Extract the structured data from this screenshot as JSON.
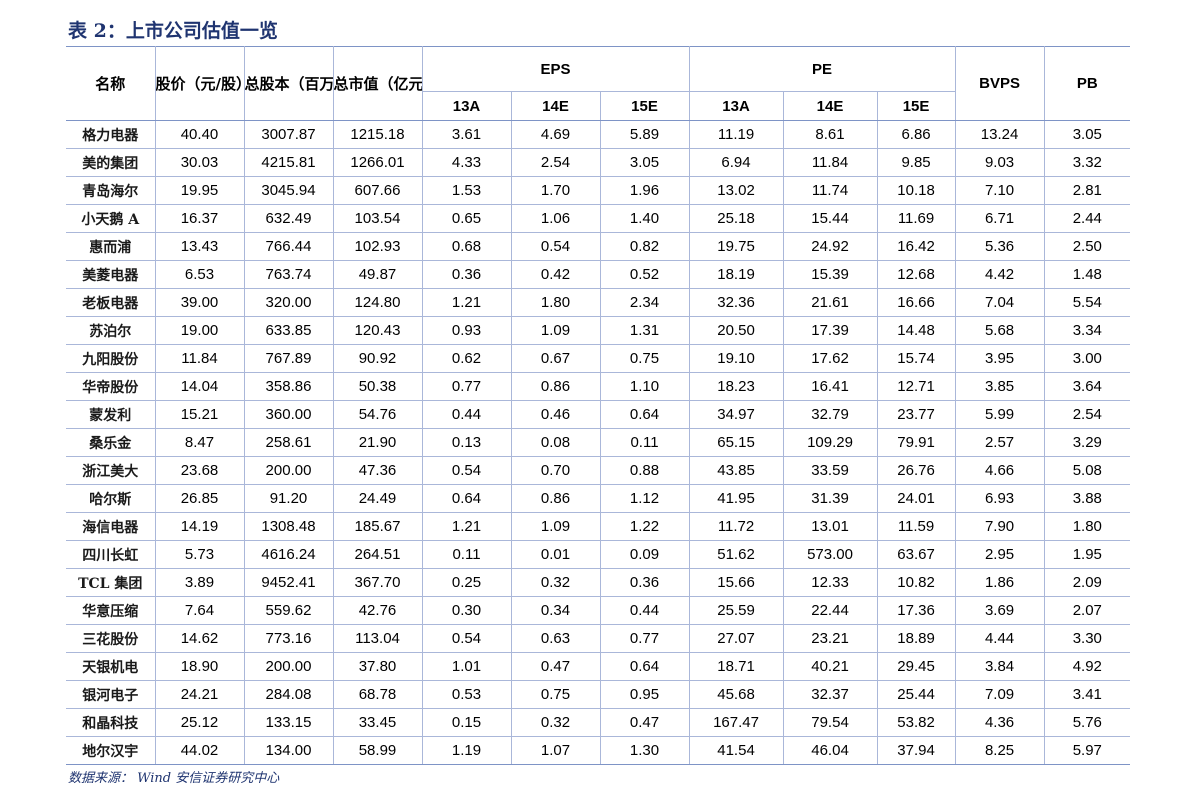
{
  "title": "表 2：上市公司估值一览",
  "headers": {
    "name": "名称",
    "price": "股价（元/股）",
    "shares": "总股本（百万股）",
    "mktcap": "总市值（亿元）",
    "eps": "EPS",
    "pe": "PE",
    "bvps": "BVPS",
    "pb": "PB",
    "years": [
      "13A",
      "14E",
      "15E"
    ]
  },
  "rows": [
    [
      "格力电器",
      "40.40",
      "3007.87",
      "1215.18",
      "3.61",
      "4.69",
      "5.89",
      "11.19",
      "8.61",
      "6.86",
      "13.24",
      "3.05"
    ],
    [
      "美的集团",
      "30.03",
      "4215.81",
      "1266.01",
      "4.33",
      "2.54",
      "3.05",
      "6.94",
      "11.84",
      "9.85",
      "9.03",
      "3.32"
    ],
    [
      "青岛海尔",
      "19.95",
      "3045.94",
      "607.66",
      "1.53",
      "1.70",
      "1.96",
      "13.02",
      "11.74",
      "10.18",
      "7.10",
      "2.81"
    ],
    [
      "小天鹅 A",
      "16.37",
      "632.49",
      "103.54",
      "0.65",
      "1.06",
      "1.40",
      "25.18",
      "15.44",
      "11.69",
      "6.71",
      "2.44"
    ],
    [
      "惠而浦",
      "13.43",
      "766.44",
      "102.93",
      "0.68",
      "0.54",
      "0.82",
      "19.75",
      "24.92",
      "16.42",
      "5.36",
      "2.50"
    ],
    [
      "美菱电器",
      "6.53",
      "763.74",
      "49.87",
      "0.36",
      "0.42",
      "0.52",
      "18.19",
      "15.39",
      "12.68",
      "4.42",
      "1.48"
    ],
    [
      "老板电器",
      "39.00",
      "320.00",
      "124.80",
      "1.21",
      "1.80",
      "2.34",
      "32.36",
      "21.61",
      "16.66",
      "7.04",
      "5.54"
    ],
    [
      "苏泊尔",
      "19.00",
      "633.85",
      "120.43",
      "0.93",
      "1.09",
      "1.31",
      "20.50",
      "17.39",
      "14.48",
      "5.68",
      "3.34"
    ],
    [
      "九阳股份",
      "11.84",
      "767.89",
      "90.92",
      "0.62",
      "0.67",
      "0.75",
      "19.10",
      "17.62",
      "15.74",
      "3.95",
      "3.00"
    ],
    [
      "华帝股份",
      "14.04",
      "358.86",
      "50.38",
      "0.77",
      "0.86",
      "1.10",
      "18.23",
      "16.41",
      "12.71",
      "3.85",
      "3.64"
    ],
    [
      "蒙发利",
      "15.21",
      "360.00",
      "54.76",
      "0.44",
      "0.46",
      "0.64",
      "34.97",
      "32.79",
      "23.77",
      "5.99",
      "2.54"
    ],
    [
      "桑乐金",
      "8.47",
      "258.61",
      "21.90",
      "0.13",
      "0.08",
      "0.11",
      "65.15",
      "109.29",
      "79.91",
      "2.57",
      "3.29"
    ],
    [
      "浙江美大",
      "23.68",
      "200.00",
      "47.36",
      "0.54",
      "0.70",
      "0.88",
      "43.85",
      "33.59",
      "26.76",
      "4.66",
      "5.08"
    ],
    [
      "哈尔斯",
      "26.85",
      "91.20",
      "24.49",
      "0.64",
      "0.86",
      "1.12",
      "41.95",
      "31.39",
      "24.01",
      "6.93",
      "3.88"
    ],
    [
      "海信电器",
      "14.19",
      "1308.48",
      "185.67",
      "1.21",
      "1.09",
      "1.22",
      "11.72",
      "13.01",
      "11.59",
      "7.90",
      "1.80"
    ],
    [
      "四川长虹",
      "5.73",
      "4616.24",
      "264.51",
      "0.11",
      "0.01",
      "0.09",
      "51.62",
      "573.00",
      "63.67",
      "2.95",
      "1.95"
    ],
    [
      "TCL 集团",
      "3.89",
      "9452.41",
      "367.70",
      "0.25",
      "0.32",
      "0.36",
      "15.66",
      "12.33",
      "10.82",
      "1.86",
      "2.09"
    ],
    [
      "华意压缩",
      "7.64",
      "559.62",
      "42.76",
      "0.30",
      "0.34",
      "0.44",
      "25.59",
      "22.44",
      "17.36",
      "3.69",
      "2.07"
    ],
    [
      "三花股份",
      "14.62",
      "773.16",
      "113.04",
      "0.54",
      "0.63",
      "0.77",
      "27.07",
      "23.21",
      "18.89",
      "4.44",
      "3.30"
    ],
    [
      "天银机电",
      "18.90",
      "200.00",
      "37.80",
      "1.01",
      "0.47",
      "0.64",
      "18.71",
      "40.21",
      "29.45",
      "3.84",
      "4.92"
    ],
    [
      "银河电子",
      "24.21",
      "284.08",
      "68.78",
      "0.53",
      "0.75",
      "0.95",
      "45.68",
      "32.37",
      "25.44",
      "7.09",
      "3.41"
    ],
    [
      "和晶科技",
      "25.12",
      "133.15",
      "33.45",
      "0.15",
      "0.32",
      "0.47",
      "167.47",
      "79.54",
      "53.82",
      "4.36",
      "5.76"
    ],
    [
      "地尔汉宇",
      "44.02",
      "134.00",
      "58.99",
      "1.19",
      "1.07",
      "1.30",
      "41.54",
      "46.04",
      "37.94",
      "8.25",
      "5.97"
    ]
  ],
  "source": "数据来源： Wind  安信证券研究中心"
}
